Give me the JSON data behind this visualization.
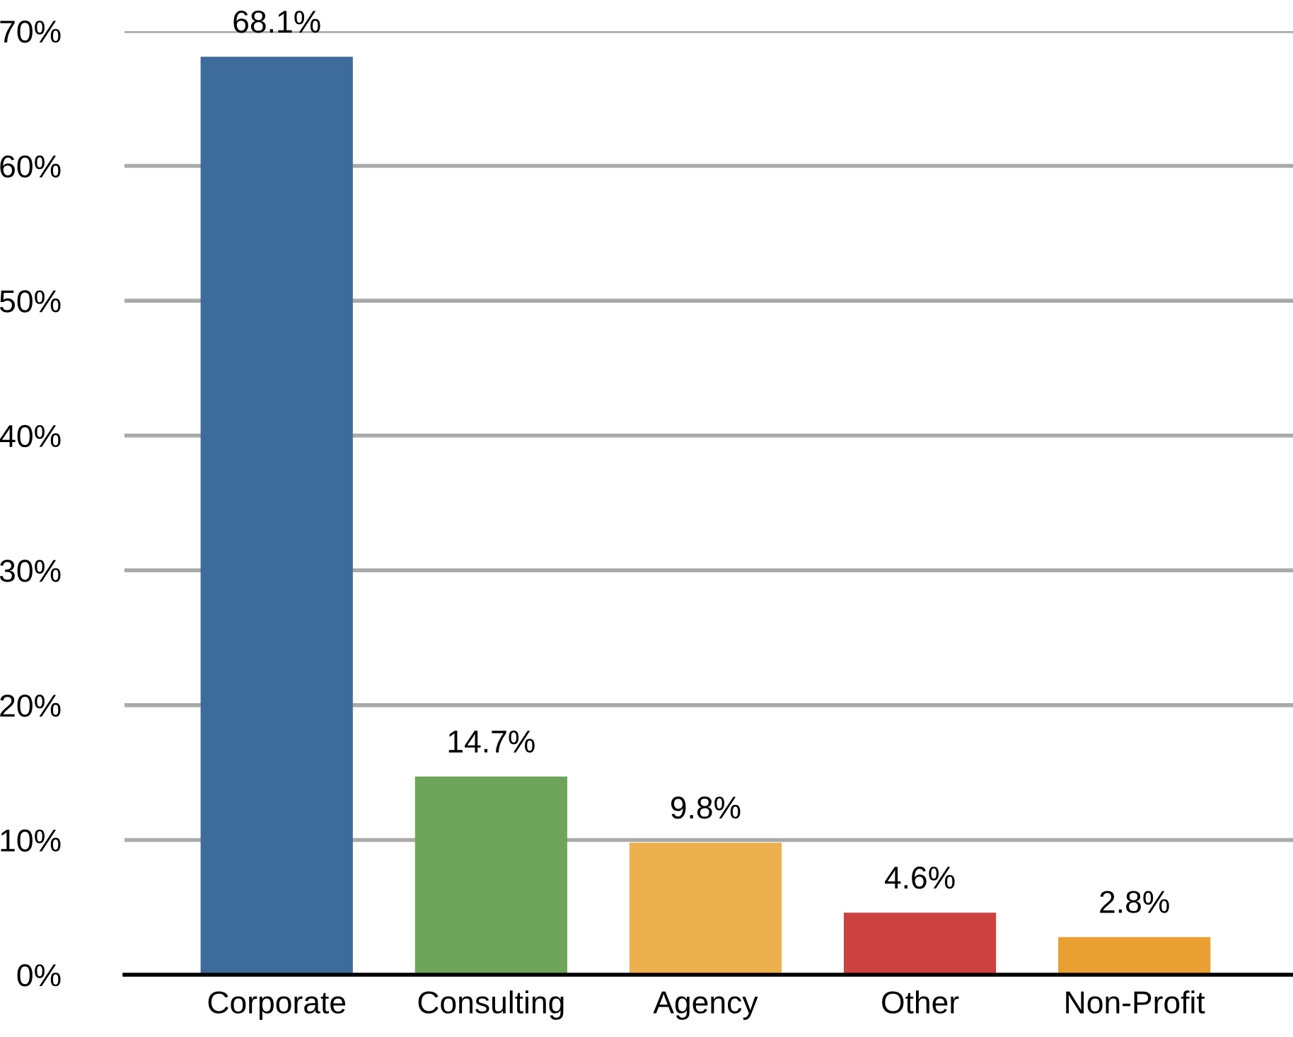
{
  "chart_data": {
    "type": "bar",
    "categories": [
      "Corporate",
      "Consulting",
      "Agency",
      "Other",
      "Non-Profit"
    ],
    "values": [
      68.1,
      14.7,
      9.8,
      4.6,
      2.8
    ],
    "colors": [
      "#3d6b9a",
      "#6ea55a",
      "#ecb04f",
      "#cb4240",
      "#ea9f32"
    ],
    "value_labels": [
      "68.1%",
      "14.7%",
      "9.8%",
      "4.6%",
      "2.8%"
    ],
    "ylim": [
      0,
      70
    ],
    "yticks": [
      {
        "value": 0,
        "label": "0%"
      },
      {
        "value": 10,
        "label": "10%"
      },
      {
        "value": 20,
        "label": "20%"
      },
      {
        "value": 30,
        "label": "30%"
      },
      {
        "value": 40,
        "label": "40%"
      },
      {
        "value": 50,
        "label": "50%"
      },
      {
        "value": 60,
        "label": "60%"
      },
      {
        "value": 70,
        "label": "70%"
      }
    ],
    "grid": "y",
    "legend": false
  }
}
